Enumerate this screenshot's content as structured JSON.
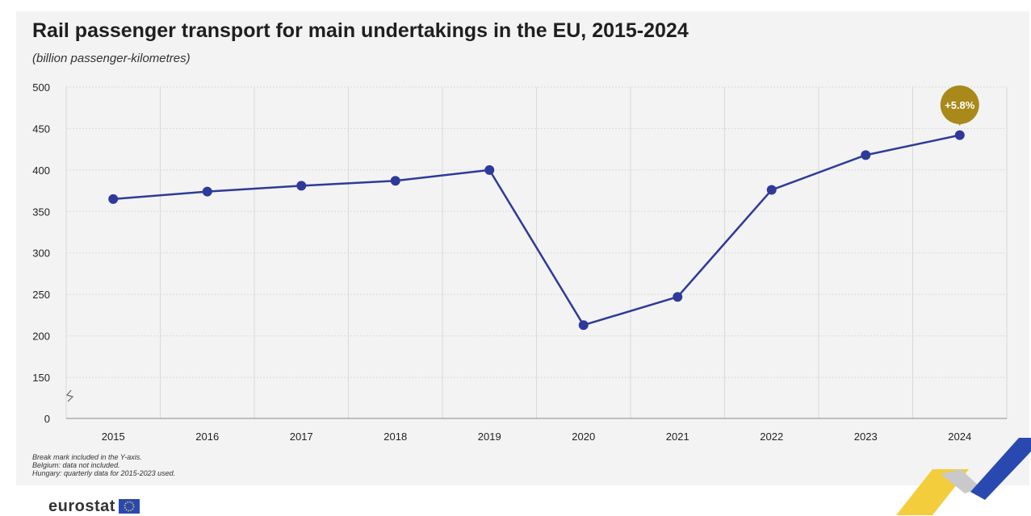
{
  "title": "Rail passenger transport for main undertakings in the EU, 2015-2024",
  "subtitle": "(billion passenger-kilometres)",
  "notes": [
    "Break mark included in the Y-axis.",
    "Belgium: data not included.",
    "Hungary: quarterly data for 2015-2023 used."
  ],
  "logo_text": "eurostat",
  "colors": {
    "line": "#2e3a9a",
    "point": "#2e3a9a",
    "highlight": "#a8891a",
    "grid": "#d9d9d9",
    "eu_blue": "#2a49b0",
    "eu_yellow": "#f3cd3b"
  },
  "chart_data": {
    "type": "line",
    "title": "Rail passenger transport for main undertakings in the EU, 2015-2024",
    "subtitle": "(billion passenger-kilometres)",
    "xlabel": "",
    "ylabel": "",
    "categories": [
      "2015",
      "2016",
      "2017",
      "2018",
      "2019",
      "2020",
      "2021",
      "2022",
      "2023",
      "2024"
    ],
    "series": [
      {
        "values": [
          365,
          374,
          381,
          387,
          400,
          213,
          247,
          376,
          418,
          442
        ]
      }
    ],
    "y_ticks": [
      "0",
      "150",
      "200",
      "250",
      "300",
      "350",
      "400",
      "450",
      "500"
    ],
    "ylim": [
      0,
      500
    ],
    "axis_break": "between 0 and 150",
    "grid": true,
    "annotation": {
      "category": "2024",
      "text": "+5.8%"
    }
  }
}
